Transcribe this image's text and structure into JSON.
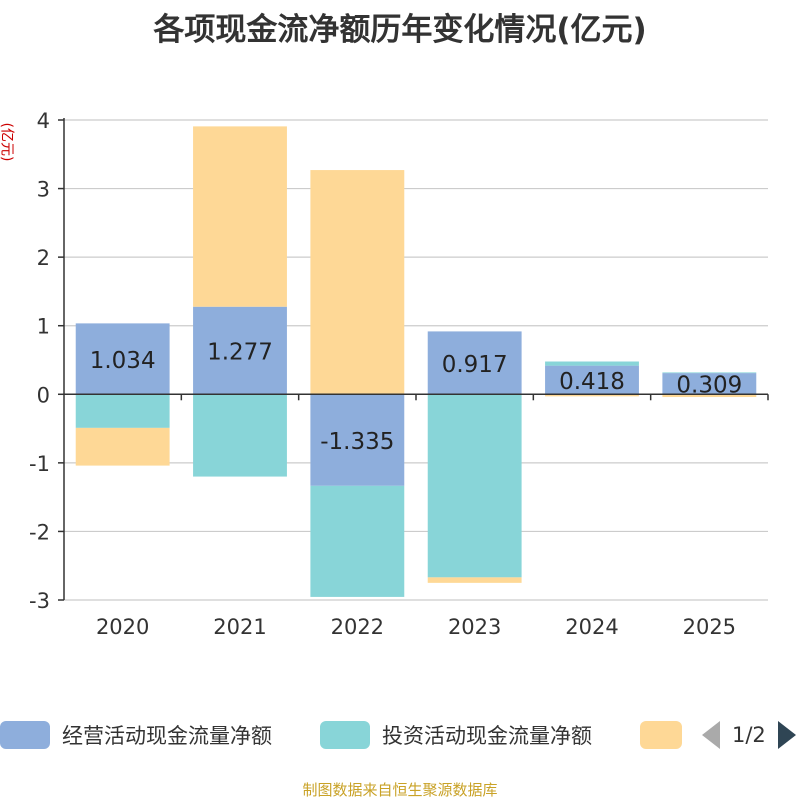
{
  "chart_data": {
    "type": "bar",
    "stacked": true,
    "title": "各项现金流净额历年变化情况(亿元)",
    "ylabel": "(亿元)",
    "categories": [
      "2020",
      "2021",
      "2022",
      "2023",
      "2024",
      "2025"
    ],
    "ylim": [
      -3,
      4
    ],
    "yticks": [
      4,
      3,
      2,
      1,
      0,
      -1,
      -2,
      -3
    ],
    "series": [
      {
        "name": "经营活动现金流量净额",
        "color": "#8eaedc",
        "values": [
          1.034,
          1.277,
          -1.335,
          0.917,
          0.418,
          0.309
        ]
      },
      {
        "name": "投资活动现金流量净额",
        "color": "#88d5d8",
        "values": [
          -0.49,
          -1.2,
          -1.62,
          -2.67,
          0.06,
          0.01
        ]
      },
      {
        "name": "",
        "color": "#fed896",
        "values": [
          -0.55,
          2.63,
          3.27,
          -0.08,
          -0.03,
          -0.04
        ]
      }
    ],
    "data_labels": [
      "1.034",
      "1.277",
      "-1.335",
      "0.917",
      "0.418",
      "0.309"
    ],
    "legend": {
      "position": "bottom",
      "page": "1/2"
    }
  },
  "source_text": "制图数据来自恒生聚源数据库"
}
